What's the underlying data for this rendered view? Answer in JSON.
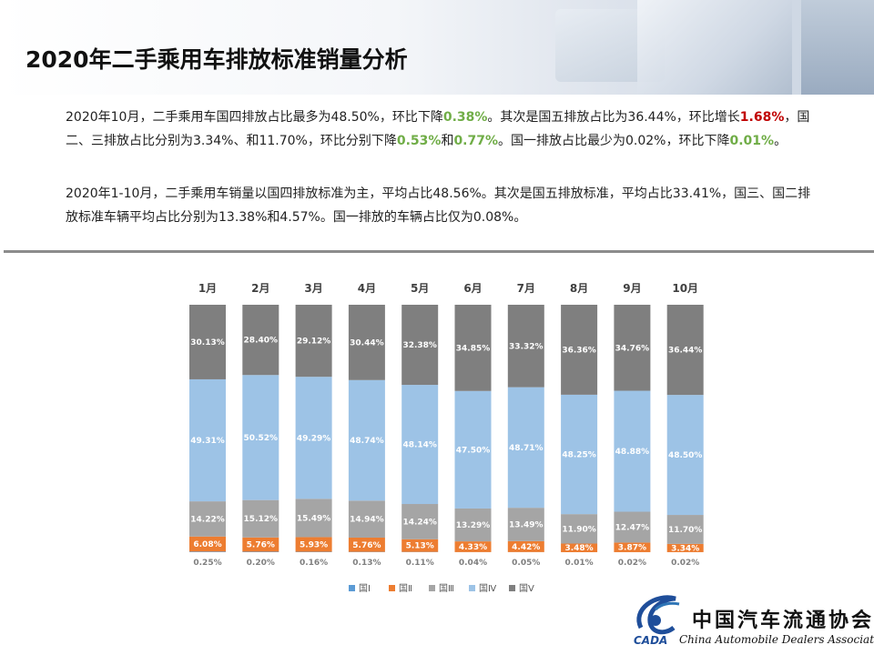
{
  "title": "2020年二手乘用车排放标准销量分析",
  "paragraph1": [
    {
      "t": "2020年10月，二手乘用车国四排放占比最多为48.50%，环比下降",
      "c": ""
    },
    {
      "t": "0.38%",
      "c": "g"
    },
    {
      "t": "。其次是国五排放占比为36.44%，环比增长",
      "c": ""
    },
    {
      "t": "1.68%",
      "c": "r"
    },
    {
      "t": "，国二、三排放占比分别为3.34%、和11.70%，环比分别下降",
      "c": ""
    },
    {
      "t": "0.53%",
      "c": "g"
    },
    {
      "t": "和",
      "c": ""
    },
    {
      "t": "0.77%",
      "c": "g"
    },
    {
      "t": "。国一排放占比最少为0.02%，环比下降",
      "c": ""
    },
    {
      "t": "0.01%",
      "c": "g"
    },
    {
      "t": "。",
      "c": ""
    }
  ],
  "paragraph2": "2020年1-10月，二手乘用车销量以国四排放标准为主，平均占比48.56%。其次是国五排放标准，平均占比33.41%，国三、国二排放标准车辆平均占比分别为13.38%和4.57%。国一排放的车辆占比仅为0.08%。",
  "logo": {
    "name": "中国汽车流通协会",
    "english": "China Automobile Dealers Association",
    "mark_text": "CADA"
  },
  "chart_data": {
    "type": "bar",
    "stacked": true,
    "percent_stacked": true,
    "categories": [
      "1月",
      "2月",
      "3月",
      "4月",
      "5月",
      "6月",
      "7月",
      "8月",
      "9月",
      "10月"
    ],
    "series": [
      {
        "name": "国Ⅰ",
        "color": "#5b9bd5",
        "values": [
          "0.25%",
          "0.20%",
          "0.16%",
          "0.13%",
          "0.11%",
          "0.04%",
          "0.05%",
          "0.01%",
          "0.02%",
          "0.02%"
        ]
      },
      {
        "name": "国Ⅱ",
        "color": "#ed7d31",
        "values": [
          "6.08%",
          "5.76%",
          "5.93%",
          "5.76%",
          "5.13%",
          "4.33%",
          "4.42%",
          "3.48%",
          "3.87%",
          "3.34%"
        ]
      },
      {
        "name": "国Ⅲ",
        "color": "#a5a5a5",
        "values": [
          "14.22%",
          "15.12%",
          "15.49%",
          "14.94%",
          "14.24%",
          "13.29%",
          "13.49%",
          "11.90%",
          "12.47%",
          "11.70%"
        ]
      },
      {
        "name": "国Ⅳ",
        "color": "#9dc3e6",
        "values": [
          "49.31%",
          "50.52%",
          "49.29%",
          "48.74%",
          "48.14%",
          "47.50%",
          "48.71%",
          "48.25%",
          "48.88%",
          "48.50%"
        ]
      },
      {
        "name": "国Ⅴ",
        "color": "#7f7f7f",
        "values": [
          "30.13%",
          "28.40%",
          "29.12%",
          "30.44%",
          "32.38%",
          "34.85%",
          "33.32%",
          "36.36%",
          "34.76%",
          "36.44%"
        ]
      }
    ],
    "legend_position": "bottom",
    "grid": false
  }
}
